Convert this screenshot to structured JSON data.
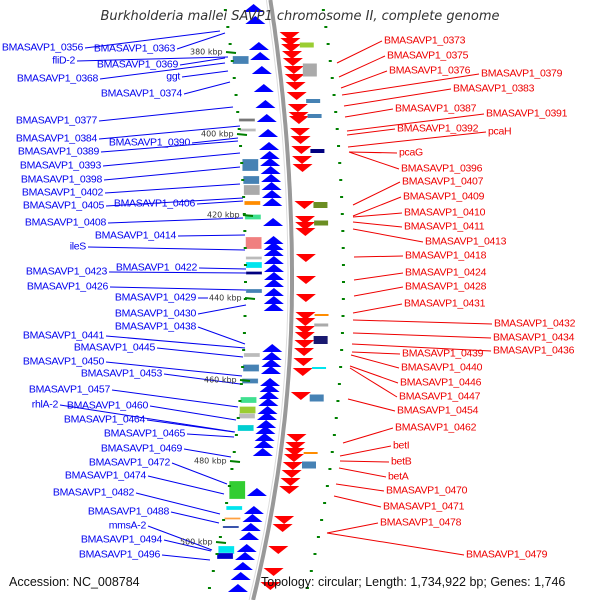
{
  "title": "Burkholderia mallei SAVP1 chromosome II, complete genome",
  "accession": "Accession: NC_008784",
  "summary": "Topology: circular; Length: 1,734,922 bp; Genes: 1,746",
  "colors": {
    "forward": "#0000ff",
    "reverse": "#ff0000",
    "backbone": "#888888",
    "tick": "#008000"
  },
  "scale_ticks": [
    "380 kbp",
    "400 kbp",
    "420 kbp",
    "440 kbp",
    "460 kbp",
    "480 kbp",
    "500 kbp"
  ],
  "left_labels": [
    "BMASAVP1_0356",
    "BMASAVP1_0363",
    "fliD-2",
    "BMASAVP1_0369",
    "BMASAVP1_0368",
    "ggt",
    "BMASAVP1_0374",
    "BMASAVP1_0377",
    "BMASAVP1_0384",
    "BMASAVP1_0390",
    "BMASAVP1_0389",
    "BMASAVP1_0393",
    "BMASAVP1_0398",
    "BMASAVP1_0402",
    "BMASAVP1_0405",
    "BMASAVP1_0406",
    "BMASAVP1_0408",
    "BMASAVP1_0414",
    "ileS",
    "BMASAVP1_0423",
    "BMASAVP1_0422",
    "BMASAVP1_0426",
    "BMASAVP1_0429",
    "BMASAVP1_0430",
    "BMASAVP1_0438",
    "BMASAVP1_0441",
    "BMASAVP1_0445",
    "BMASAVP1_0450",
    "BMASAVP1_0453",
    "BMASAVP1_0457",
    "rhlA-2",
    "BMASAVP1_0460",
    "BMASAVP1_0464",
    "BMASAVP1_0465",
    "BMASAVP1_0469",
    "BMASAVP1_0472",
    "BMASAVP1_0474",
    "BMASAVP1_0482",
    "BMASAVP1_0488",
    "mmsA-2",
    "BMASAVP1_0494",
    "BMASAVP1_0496"
  ],
  "right_labels": [
    "BMASAVP1_0373",
    "BMASAVP1_0375",
    "BMASAVP1_0376",
    "BMASAVP1_0379",
    "BMASAVP1_0383",
    "BMASAVP1_0387",
    "BMASAVP1_0391",
    "BMASAVP1_0392",
    "pcaH",
    "pcaG",
    "BMASAVP1_0396",
    "BMASAVP1_0407",
    "BMASAVP1_0409",
    "BMASAVP1_0410",
    "BMASAVP1_0411",
    "BMASAVP1_0413",
    "BMASAVP1_0418",
    "BMASAVP1_0424",
    "BMASAVP1_0428",
    "BMASAVP1_0431",
    "BMASAVP1_0432",
    "BMASAVP1_0434",
    "BMASAVP1_0436",
    "BMASAVP1_0439",
    "BMASAVP1_0440",
    "BMASAVP1_0446",
    "BMASAVP1_0447",
    "BMASAVP1_0454",
    "BMASAVP1_0462",
    "betI",
    "betB",
    "betA",
    "BMASAVP1_0470",
    "BMASAVP1_0471",
    "BMASAVP1_0478",
    "BMASAVP1_0479"
  ]
}
